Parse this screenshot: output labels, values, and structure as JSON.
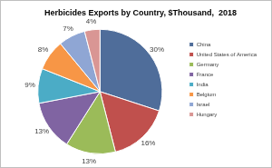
{
  "chart_data": {
    "type": "pie",
    "title": "Herbicides Exports by Country, $Thousand,  2018",
    "categories": [
      "China",
      "United States of America",
      "Germany",
      "France",
      "India",
      "Belgium",
      "Israel",
      "Hungary"
    ],
    "values": [
      30,
      16,
      13,
      13,
      9,
      8,
      7,
      4
    ],
    "value_labels": [
      "30%",
      "16%",
      "13%",
      "13%",
      "9%",
      "8%",
      "7%",
      "4%"
    ],
    "colors": [
      "#4f6d9a",
      "#c0504d",
      "#9bbb59",
      "#8064a2",
      "#4bacc6",
      "#f79646",
      "#8fa6d4",
      "#d99694"
    ],
    "legend": "right",
    "data_labels": true
  }
}
